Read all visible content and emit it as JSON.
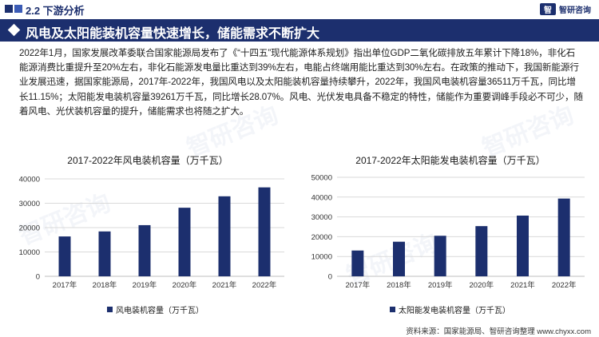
{
  "header": {
    "section": "2.2  下游分析",
    "brand_logo": "智",
    "brand_name": "智研咨询"
  },
  "banner": {
    "title": "风电及太阳能装机容量快速增长，储能需求不断扩大"
  },
  "paragraph": "2022年1月，国家发展改革委联合国家能源局发布了《“十四五”现代能源体系规划》指出单位GDP二氧化碳排放五年累计下降18%，非化石能源消费比重提升至20%左右，非化石能源发电量比重达到39%左右，电能占终端用能比重达到30%左右。在政策的推动下，我国新能源行业发展迅速，据国家能源局，2017年-2022年，我国风电以及太阳能装机容量持续攀升，2022年，我国风电装机容量36511万千瓦，同比增长11.15%；太阳能发电装机容量39261万千瓦，同比增长28.07%。风电、光伏发电具备不稳定的特性，储能作为重要调峰手段必不可少，随着风电、光伏装机容量的提升，储能需求也将随之扩大。",
  "watermark": "智研咨询",
  "colors": {
    "primary": "#1c2f6e",
    "grid": "#d9d9d9",
    "axis": "#bfbfbf"
  },
  "chart_data": [
    {
      "type": "bar",
      "title": "2017-2022年风电装机容量（万千瓦）",
      "categories": [
        "2017年",
        "2018年",
        "2019年",
        "2020年",
        "2021年",
        "2022年"
      ],
      "series": [
        {
          "name": "风电装机容量（万千瓦）",
          "values": [
            16367,
            18426,
            21005,
            28153,
            32848,
            36511
          ]
        }
      ],
      "ylim": [
        0,
        40000
      ],
      "yticks": [
        "0",
        "10000",
        "20000",
        "30000",
        "40000"
      ],
      "grid": true,
      "legend": "bottom"
    },
    {
      "type": "bar",
      "title": "2017-2022年太阳能发电装机容量（万千瓦）",
      "categories": [
        "2017年",
        "2018年",
        "2019年",
        "2020年",
        "2021年",
        "2022年"
      ],
      "series": [
        {
          "name": "太阳能发电装机容量（万千瓦）",
          "values": [
            13025,
            17463,
            20468,
            25343,
            30656,
            39261
          ]
        }
      ],
      "ylim": [
        0,
        50000
      ],
      "yticks": [
        "0",
        "10000",
        "20000",
        "30000",
        "40000",
        "50000"
      ],
      "grid": true,
      "legend": "bottom"
    }
  ],
  "footer": {
    "source": "资料来源：国家能源局、智研咨询整理  www.chyxx.com"
  }
}
